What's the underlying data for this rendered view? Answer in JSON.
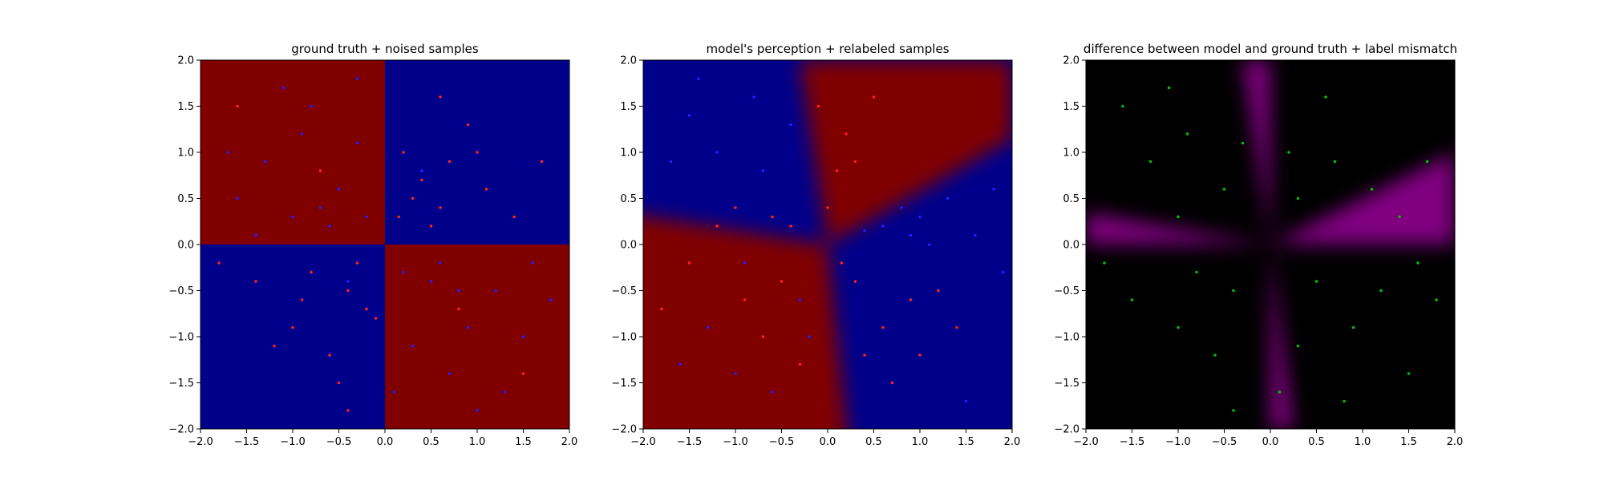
{
  "chart_data": [
    {
      "type": "scatter",
      "title": "ground truth + noised samples",
      "xlim": [
        -2.0,
        2.0
      ],
      "ylim": [
        -2.0,
        2.0
      ],
      "xticks": [
        "−2.0",
        "−1.5",
        "−1.0",
        "−0.5",
        "0.0",
        "0.5",
        "1.0",
        "1.5",
        "2.0"
      ],
      "yticks": [
        "−2.0",
        "−1.5",
        "−1.0",
        "−0.5",
        "0.0",
        "0.5",
        "1.0",
        "1.5",
        "2.0"
      ],
      "background": {
        "kind": "quadrant-xor",
        "description_colors": {
          "class_a": "#800000",
          "class_b": "#00008b"
        },
        "regions": [
          {
            "quadrant": "top-left",
            "class": "class_a"
          },
          {
            "quadrant": "top-right",
            "class": "class_b"
          },
          {
            "quadrant": "bottom-left",
            "class": "class_b"
          },
          {
            "quadrant": "bottom-right",
            "class": "class_a"
          }
        ]
      },
      "point_colors": {
        "class_a": "#ff2020",
        "class_b": "#2020ff"
      },
      "series": [
        {
          "class": "class_a",
          "points": [
            [
              -0.4,
              -0.5
            ],
            [
              -0.8,
              -0.3
            ],
            [
              -0.2,
              -0.7
            ],
            [
              -1.0,
              -0.9
            ],
            [
              -0.6,
              -1.2
            ],
            [
              -1.4,
              -0.4
            ],
            [
              -0.3,
              -0.2
            ],
            [
              -0.9,
              -0.6
            ],
            [
              -0.5,
              -1.5
            ],
            [
              -1.2,
              -1.1
            ],
            [
              0.3,
              0.5
            ],
            [
              0.7,
              0.9
            ],
            [
              0.5,
              0.2
            ],
            [
              1.1,
              0.6
            ],
            [
              0.2,
              1.0
            ],
            [
              1.4,
              0.3
            ],
            [
              0.9,
              1.3
            ],
            [
              0.4,
              0.7
            ],
            [
              1.0,
              1.0
            ],
            [
              0.6,
              0.4
            ],
            [
              -0.7,
              0.8
            ],
            [
              0.8,
              -0.7
            ],
            [
              -1.6,
              1.5
            ],
            [
              1.5,
              -1.4
            ],
            [
              -0.1,
              -0.8
            ],
            [
              0.15,
              0.3
            ],
            [
              1.7,
              0.9
            ],
            [
              0.6,
              1.6
            ],
            [
              -0.4,
              -1.8
            ],
            [
              -1.8,
              -0.2
            ]
          ]
        },
        {
          "class": "class_b",
          "points": [
            [
              -0.5,
              0.6
            ],
            [
              -1.0,
              0.3
            ],
            [
              -0.3,
              1.1
            ],
            [
              -1.3,
              0.9
            ],
            [
              -0.8,
              1.5
            ],
            [
              -0.2,
              0.3
            ],
            [
              0.5,
              -0.4
            ],
            [
              0.9,
              -0.9
            ],
            [
              0.3,
              -1.1
            ],
            [
              1.2,
              -0.5
            ],
            [
              0.7,
              -1.4
            ],
            [
              1.5,
              -1.0
            ],
            [
              -1.6,
              0.5
            ],
            [
              -0.6,
              0.2
            ],
            [
              0.2,
              -0.3
            ],
            [
              1.0,
              -1.8
            ],
            [
              -1.1,
              1.7
            ],
            [
              1.8,
              -0.6
            ],
            [
              0.4,
              0.8
            ],
            [
              -0.4,
              -0.4
            ],
            [
              0.6,
              -0.2
            ],
            [
              -0.9,
              1.2
            ],
            [
              1.3,
              -1.6
            ],
            [
              -1.7,
              1.0
            ],
            [
              0.1,
              -1.6
            ],
            [
              -0.3,
              1.8
            ],
            [
              1.6,
              -0.2
            ],
            [
              -1.4,
              0.1
            ],
            [
              0.8,
              -0.5
            ],
            [
              -0.7,
              0.4
            ]
          ]
        }
      ]
    },
    {
      "type": "scatter",
      "title": "model's perception + relabeled samples",
      "xlim": [
        -2.0,
        2.0
      ],
      "ylim": [
        -2.0,
        2.0
      ],
      "xticks": [
        "−2.0",
        "−1.5",
        "−1.0",
        "−0.5",
        "0.0",
        "0.5",
        "1.0",
        "1.5",
        "2.0"
      ],
      "yticks": [
        "−2.0",
        "−1.5",
        "−1.0",
        "−0.5",
        "0.0",
        "0.5",
        "1.0",
        "1.5",
        "2.0"
      ],
      "background": {
        "kind": "rotated-decision-boundary",
        "description_colors": {
          "class_a": "#800000",
          "class_b": "#00008b"
        },
        "boundary_lines": [
          {
            "from": [
              -0.3,
              2.0
            ],
            "to": [
              0.25,
              -2.0
            ]
          },
          {
            "from": [
              -2.0,
              0.35
            ],
            "to": [
              2.0,
              1.0
            ]
          }
        ]
      },
      "point_colors": {
        "class_a": "#ff2020",
        "class_b": "#2020ff"
      },
      "series": [
        {
          "class": "class_a",
          "points": [
            [
              -0.5,
              -0.4
            ],
            [
              -0.9,
              -0.6
            ],
            [
              -1.2,
              0.2
            ],
            [
              -0.7,
              -1.0
            ],
            [
              -0.3,
              -1.3
            ],
            [
              -1.5,
              -0.2
            ],
            [
              0.3,
              -0.4
            ],
            [
              0.6,
              -0.9
            ],
            [
              0.9,
              -0.6
            ],
            [
              0.4,
              -1.2
            ],
            [
              0.1,
              0.8
            ],
            [
              0.2,
              1.2
            ],
            [
              0.5,
              1.6
            ],
            [
              0.0,
              0.4
            ],
            [
              0.3,
              0.9
            ],
            [
              -0.1,
              1.5
            ],
            [
              -0.6,
              0.3
            ],
            [
              -1.0,
              0.4
            ],
            [
              0.7,
              -1.5
            ],
            [
              1.2,
              -0.5
            ],
            [
              1.4,
              -0.9
            ],
            [
              -0.4,
              0.2
            ],
            [
              0.15,
              -0.2
            ],
            [
              1.0,
              -1.2
            ],
            [
              -1.8,
              -0.7
            ]
          ]
        },
        {
          "class": "class_b",
          "points": [
            [
              -0.7,
              0.8
            ],
            [
              -1.2,
              1.0
            ],
            [
              -0.4,
              1.3
            ],
            [
              -1.5,
              1.4
            ],
            [
              -0.8,
              1.6
            ],
            [
              0.6,
              0.2
            ],
            [
              1.0,
              0.3
            ],
            [
              1.3,
              0.5
            ],
            [
              0.8,
              0.4
            ],
            [
              1.6,
              0.1
            ],
            [
              1.8,
              0.6
            ],
            [
              -1.0,
              -1.4
            ],
            [
              -0.6,
              -1.6
            ],
            [
              -1.3,
              -0.9
            ],
            [
              -0.2,
              -1.0
            ],
            [
              -1.6,
              -1.3
            ],
            [
              0.4,
              0.15
            ],
            [
              1.1,
              0.0
            ],
            [
              -1.7,
              0.9
            ],
            [
              1.9,
              -0.3
            ],
            [
              -0.9,
              -0.2
            ],
            [
              -0.3,
              -0.6
            ],
            [
              1.5,
              -1.7
            ],
            [
              0.9,
              0.1
            ],
            [
              -1.4,
              1.8
            ]
          ]
        }
      ]
    },
    {
      "type": "scatter",
      "title": "difference between model and ground truth + label mismatch",
      "xlim": [
        -2.0,
        2.0
      ],
      "ylim": [
        -2.0,
        2.0
      ],
      "xticks": [
        "−2.0",
        "−1.5",
        "−1.0",
        "−0.5",
        "0.0",
        "0.5",
        "1.0",
        "1.5",
        "2.0"
      ],
      "yticks": [
        "−2.0",
        "−1.5",
        "−1.0",
        "−0.5",
        "0.0",
        "0.5",
        "1.0",
        "1.5",
        "2.0"
      ],
      "background": {
        "kind": "mismatch-wedges",
        "description_colors": {
          "match": "#000000",
          "mismatch": "#800080"
        },
        "wedges": [
          {
            "between": [
              [
                0.0,
                2.0
              ],
              [
                -0.3,
                2.0
              ]
            ],
            "apex": [
              0.0,
              0.0
            ]
          },
          {
            "between": [
              [
                0.0,
                -2.0
              ],
              [
                0.25,
                -2.0
              ]
            ],
            "apex": [
              0.0,
              0.0
            ]
          },
          {
            "between": [
              [
                -2.0,
                0.0
              ],
              [
                -2.0,
                0.35
              ]
            ],
            "apex": [
              0.0,
              0.0
            ]
          },
          {
            "between": [
              [
                2.0,
                0.0
              ],
              [
                2.0,
                1.0
              ]
            ],
            "apex": [
              0.0,
              0.0
            ]
          }
        ]
      },
      "point_colors": {
        "mismatch": "#00c000"
      },
      "series": [
        {
          "class": "mismatch",
          "points": [
            [
              -0.5,
              0.6
            ],
            [
              -1.0,
              0.3
            ],
            [
              -0.3,
              1.1
            ],
            [
              -1.3,
              0.9
            ],
            [
              0.5,
              -0.4
            ],
            [
              0.9,
              -0.9
            ],
            [
              0.3,
              -1.1
            ],
            [
              1.2,
              -0.5
            ],
            [
              -0.4,
              -0.5
            ],
            [
              -0.8,
              -0.3
            ],
            [
              -1.0,
              -0.9
            ],
            [
              -0.6,
              -1.2
            ],
            [
              0.3,
              0.5
            ],
            [
              0.7,
              0.9
            ],
            [
              1.1,
              0.6
            ],
            [
              0.2,
              1.0
            ],
            [
              1.4,
              0.3
            ],
            [
              -1.6,
              1.5
            ],
            [
              1.5,
              -1.4
            ],
            [
              -1.8,
              -0.2
            ],
            [
              0.6,
              1.6
            ],
            [
              -0.4,
              -1.8
            ],
            [
              1.7,
              0.9
            ],
            [
              -1.1,
              1.7
            ],
            [
              1.8,
              -0.6
            ],
            [
              0.1,
              -1.6
            ],
            [
              -0.9,
              1.2
            ],
            [
              1.6,
              -0.2
            ],
            [
              -1.5,
              -0.6
            ],
            [
              0.8,
              -1.7
            ]
          ]
        }
      ]
    }
  ]
}
